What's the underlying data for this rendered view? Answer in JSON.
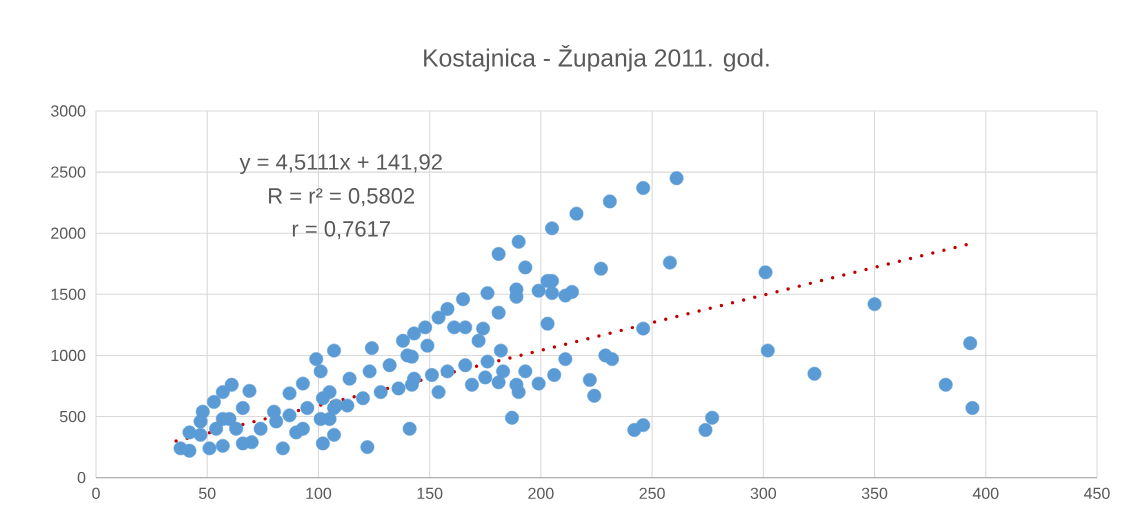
{
  "chart_data": {
    "type": "scatter",
    "title": "Kostajnica - Županja  2011. god.",
    "annotations": [
      "y = 4,5111x + 141,92",
      "R = r² = 0,5802",
      "r = 0,7617"
    ],
    "xlim": [
      0,
      450
    ],
    "xticks": [
      0,
      50,
      100,
      150,
      200,
      250,
      300,
      350,
      400,
      450
    ],
    "ylim": [
      0,
      3000
    ],
    "yticks": [
      0,
      500,
      1000,
      1500,
      2000,
      2500,
      3000
    ],
    "grid": true,
    "series": [
      {
        "color": "#5b9bd5",
        "marker": "circle",
        "x": [
          261,
          246,
          258,
          301,
          350,
          393,
          302,
          323,
          382,
          394,
          277,
          274,
          246,
          246,
          231,
          216,
          205,
          190,
          181,
          193,
          227,
          203,
          205,
          199,
          205,
          211,
          214,
          189,
          189,
          176,
          165,
          158,
          154,
          148,
          143,
          138,
          161,
          166,
          174,
          172,
          181,
          203,
          149,
          124,
          107,
          142,
          182,
          211,
          229,
          232,
          176,
          183,
          181,
          193,
          189,
          190,
          199,
          206,
          222,
          224,
          187,
          242,
          141,
          122,
          166,
          158,
          151,
          143,
          175,
          169,
          154,
          142,
          136,
          128,
          120,
          113,
          107,
          105,
          114,
          123,
          132,
          140,
          107,
          99,
          101,
          69,
          61,
          57,
          53,
          48,
          47,
          42,
          38,
          42,
          51,
          57,
          66,
          70,
          74,
          80,
          84,
          87,
          93,
          90,
          102,
          66,
          60,
          54,
          63,
          47,
          57,
          95,
          102,
          108,
          101,
          93,
          105,
          87,
          81
        ],
        "values": [
          2450,
          2370,
          1760,
          1680,
          1420,
          1100,
          1040,
          850,
          760,
          570,
          490,
          390,
          430,
          1220,
          2260,
          2160,
          2040,
          1930,
          1830,
          1720,
          1710,
          1610,
          1610,
          1530,
          1510,
          1490,
          1520,
          1540,
          1480,
          1510,
          1460,
          1380,
          1310,
          1230,
          1180,
          1120,
          1230,
          1230,
          1220,
          1120,
          1350,
          1260,
          1080,
          1060,
          1040,
          990,
          1040,
          970,
          1000,
          970,
          950,
          870,
          780,
          870,
          760,
          700,
          770,
          840,
          800,
          670,
          490,
          390,
          400,
          250,
          920,
          870,
          840,
          810,
          820,
          760,
          700,
          760,
          730,
          700,
          650,
          590,
          570,
          700,
          810,
          870,
          920,
          1000,
          350,
          970,
          870,
          710,
          760,
          700,
          620,
          540,
          460,
          370,
          240,
          220,
          240,
          260,
          280,
          290,
          400,
          540,
          240,
          690,
          770,
          370,
          280,
          570,
          480,
          400,
          400,
          350,
          480,
          570,
          650,
          590,
          480,
          400,
          480,
          510,
          460
        ]
      },
      {
        "type": "line",
        "color": "#c00000",
        "marker": "none",
        "line_style": "dotted",
        "x": [
          36,
          392
        ],
        "values": [
          300,
          1910
        ]
      }
    ]
  }
}
